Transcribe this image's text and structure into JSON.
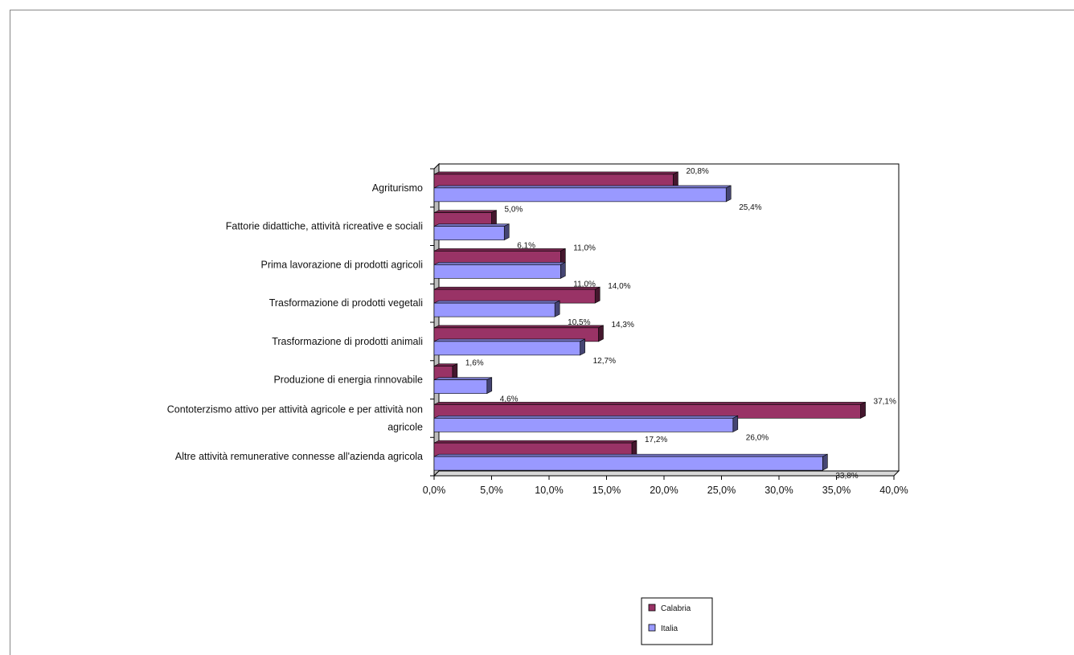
{
  "chart_data": {
    "type": "bar",
    "orientation": "horizontal",
    "title": "",
    "xlabel": "",
    "ylabel": "",
    "xlim": [
      0,
      40
    ],
    "x_ticks": [
      "0,0%",
      "5,0%",
      "10,0%",
      "15,0%",
      "20,0%",
      "25,0%",
      "30,0%",
      "35,0%",
      "40,0%"
    ],
    "grid": false,
    "legend_position": "bottom",
    "categories": [
      "Agriturismo",
      "Fattorie didattiche, attività ricreative e sociali",
      "Prima lavorazione di prodotti agricoli",
      "Trasformazione di prodotti vegetali",
      "Trasformazione di prodotti animali",
      "Produzione di energia rinnovabile",
      "Contoterzismo attivo per attività agricole e per attività non agricole",
      "Altre attività remunerative connesse all'azienda agricola"
    ],
    "series": [
      {
        "name": "Calabria",
        "color": "#993366",
        "values": [
          20.8,
          5.0,
          11.0,
          14.0,
          14.3,
          1.6,
          37.1,
          17.2
        ],
        "labels": [
          "20,8%",
          "5,0%",
          "11,0%",
          "14,0%",
          "14,3%",
          "1,6%",
          "37,1%",
          "17,2%"
        ]
      },
      {
        "name": "Italia",
        "color": "#9999FF",
        "values": [
          25.4,
          6.1,
          11.0,
          10.5,
          12.7,
          4.6,
          26.0,
          33.8
        ],
        "labels": [
          "25,4%",
          "6,1%",
          "11,0%",
          "10,5%",
          "12,7%",
          "4,6%",
          "26,0%",
          "33,8%"
        ]
      }
    ]
  }
}
